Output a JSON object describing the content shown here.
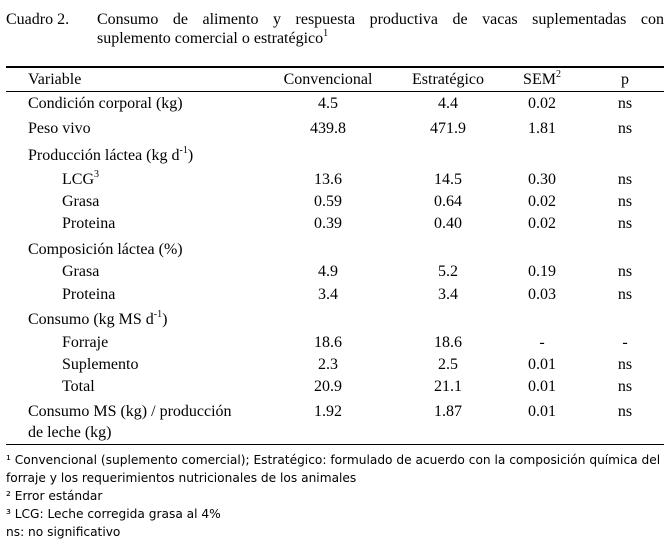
{
  "caption": {
    "label": "Cuadro 2.",
    "line1": "Consumo de alimento y respuesta productiva de vacas suplementadas con",
    "line2": "suplemento comercial o estratégico",
    "line2_sup": "1"
  },
  "header": {
    "variable": "Variable",
    "col1": "Convencional",
    "col2": "Estratégico",
    "col3": "SEM",
    "col3_sup": "2",
    "col4": "p"
  },
  "rows": {
    "condicion": {
      "label": "Condición corporal (kg)",
      "v1": "4.5",
      "v2": "4.4",
      "sem": "0.02",
      "p": "ns"
    },
    "peso": {
      "label": "Peso vivo",
      "v1": "439.8",
      "v2": "471.9",
      "sem": "1.81",
      "p": "ns"
    },
    "produccion": {
      "label": "Producción láctea (kg d",
      "exp": "-1",
      "close": ")"
    },
    "lcg": {
      "label": "LCG",
      "sup": "3",
      "v1": "13.6",
      "v2": "14.5",
      "sem": "0.30",
      "p": "ns"
    },
    "grasa1": {
      "label": "Grasa",
      "v1": "0.59",
      "v2": "0.64",
      "sem": "0.02",
      "p": "ns"
    },
    "proteina1": {
      "label": "Proteina",
      "v1": "0.39",
      "v2": "0.40",
      "sem": "0.02",
      "p": "ns"
    },
    "composicion": {
      "label": "Composición láctea (%)"
    },
    "grasa2": {
      "label": "Grasa",
      "v1": "4.9",
      "v2": "5.2",
      "sem": "0.19",
      "p": "ns"
    },
    "proteina2": {
      "label": "Proteina",
      "v1": "3.4",
      "v2": "3.4",
      "sem": "0.03",
      "p": "ns"
    },
    "consumo": {
      "label": "Consumo (kg MS d",
      "exp": "-1",
      "close": ")"
    },
    "forraje": {
      "label": "Forraje",
      "v1": "18.6",
      "v2": "18.6",
      "sem": "-",
      "p": "-"
    },
    "suplemento": {
      "label": "Suplemento",
      "v1": "2.3",
      "v2": "2.5",
      "sem": "0.01",
      "p": "ns"
    },
    "total": {
      "label": "Total",
      "v1": "20.9",
      "v2": "21.1",
      "sem": "0.01",
      "p": "ns"
    },
    "consumo_ms": {
      "label1": "Consumo MS (kg) / producción",
      "label2": "de leche (kg)",
      "v1": "1.92",
      "v2": "1.87",
      "sem": "0.01",
      "p": "ns"
    }
  },
  "notes": {
    "n1": "¹ Convencional (suplemento comercial); Estratégico: formulado de acuerdo con la composición química del forraje y los requerimientos nutricionales de los animales",
    "n2": "² Error estándar",
    "n3": "³ LCG: Leche corregida grasa al 4%",
    "n4": "ns: no significativo"
  }
}
